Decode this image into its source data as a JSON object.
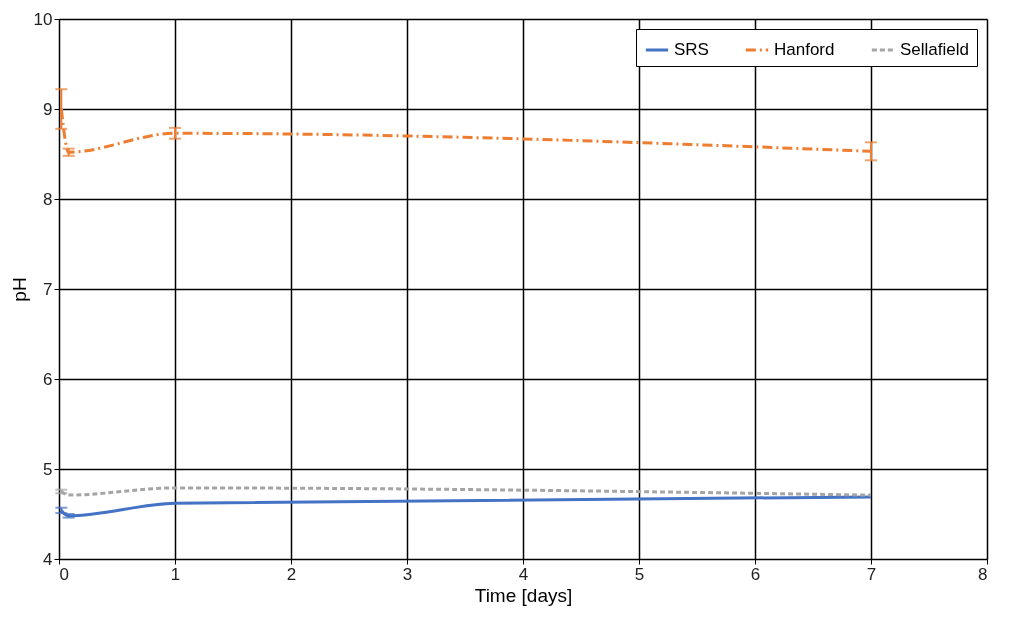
{
  "chart_data": {
    "type": "line",
    "xlabel": "Time [days]",
    "ylabel": "pH",
    "xlim": [
      0,
      8
    ],
    "ylim": [
      4,
      10
    ],
    "xticks": [
      0,
      1,
      2,
      3,
      4,
      5,
      6,
      7,
      8
    ],
    "yticks": [
      4,
      5,
      6,
      7,
      8,
      9,
      10
    ],
    "grid": true,
    "legend": "top right",
    "marker": "none",
    "series": [
      {
        "name": "SRS",
        "color": "#4472c4",
        "line_style": "solid",
        "x": [
          0.02,
          0.083,
          1,
          7
        ],
        "values": [
          4.54,
          4.48,
          4.62,
          4.69
        ],
        "errors": [
          0.03,
          0.02,
          null,
          null
        ]
      },
      {
        "name": "Hanford",
        "color": "#ed7d31",
        "line_style": "dashed",
        "x": [
          0.02,
          0.083,
          1,
          7
        ],
        "values": [
          9.0,
          8.52,
          8.73,
          8.53
        ],
        "errors": [
          0.22,
          0.04,
          0.06,
          0.1
        ]
      },
      {
        "name": "Sellafield",
        "color": "#a5a5a5",
        "line_style": "dotted",
        "x": [
          0.02,
          0.083,
          1,
          7
        ],
        "values": [
          4.75,
          4.71,
          4.79,
          4.71
        ],
        "errors": [
          0.02,
          null,
          null,
          null
        ]
      }
    ]
  }
}
